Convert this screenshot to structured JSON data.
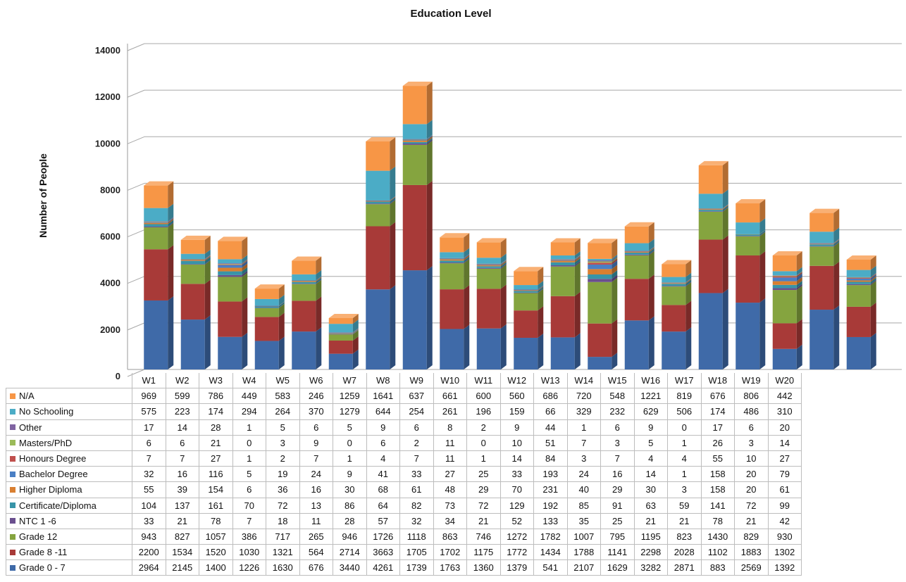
{
  "chart_data": {
    "type": "bar",
    "stacked": true,
    "title": "Education Level",
    "ylabel": "Number of People",
    "xlabel": "",
    "ylim": [
      0,
      14000
    ],
    "yticks": [
      0,
      2000,
      4000,
      6000,
      8000,
      10000,
      12000,
      14000
    ],
    "grid": true,
    "legend": "data table below chart",
    "categories": [
      "W1",
      "W2",
      "W3",
      "W4",
      "W5",
      "W6",
      "W7",
      "W8",
      "W9",
      "W10",
      "W11",
      "W12",
      "W13",
      "W14",
      "W15",
      "W16",
      "W17",
      "W18",
      "W19",
      "W20"
    ],
    "series": [
      {
        "name": "Grade 0 - 7",
        "color": "#3f6aa8",
        "values": [
          2964,
          2145,
          1400,
          1226,
          1630,
          676,
          3440,
          4261,
          1739,
          1763,
          1360,
          1379,
          541,
          2107,
          1629,
          3282,
          2871,
          883,
          2569,
          1392
        ]
      },
      {
        "name": "Grade 8 -11",
        "color": "#a83a38",
        "values": [
          2200,
          1534,
          1520,
          1030,
          1321,
          564,
          2714,
          3663,
          1705,
          1702,
          1175,
          1772,
          1434,
          1788,
          1141,
          2298,
          2028,
          1102,
          1883,
          1302
        ]
      },
      {
        "name": "Grade 12",
        "color": "#85a43f",
        "values": [
          943,
          827,
          1057,
          386,
          717,
          265,
          946,
          1726,
          1118,
          863,
          746,
          1272,
          1782,
          1007,
          795,
          1195,
          823,
          1430,
          829,
          930
        ]
      },
      {
        "name": "NTC 1 -6",
        "color": "#6a4f8e",
        "values": [
          33,
          21,
          78,
          7,
          18,
          11,
          28,
          57,
          32,
          34,
          21,
          52,
          133,
          35,
          25,
          21,
          21,
          78,
          21,
          42
        ]
      },
      {
        "name": "Certificate/Diploma",
        "color": "#3894a8",
        "values": [
          104,
          137,
          161,
          70,
          72,
          13,
          86,
          64,
          82,
          73,
          72,
          129,
          192,
          85,
          91,
          63,
          59,
          141,
          72,
          99
        ]
      },
      {
        "name": "Higher Diploma",
        "color": "#d97f30",
        "values": [
          55,
          39,
          154,
          6,
          36,
          16,
          30,
          68,
          61,
          48,
          29,
          70,
          231,
          40,
          29,
          30,
          3,
          158,
          20,
          61
        ]
      },
      {
        "name": "Bachelor Degree",
        "color": "#4a7fc4",
        "values": [
          32,
          16,
          116,
          5,
          19,
          24,
          9,
          41,
          33,
          27,
          25,
          33,
          193,
          24,
          16,
          14,
          1,
          158,
          20,
          79
        ]
      },
      {
        "name": "Honours Degree",
        "color": "#c0504d",
        "values": [
          7,
          7,
          27,
          1,
          2,
          7,
          1,
          4,
          7,
          11,
          1,
          14,
          84,
          3,
          7,
          4,
          4,
          55,
          10,
          27
        ]
      },
      {
        "name": "Masters/PhD",
        "color": "#9bbb59",
        "values": [
          6,
          6,
          21,
          0,
          3,
          9,
          0,
          6,
          2,
          11,
          0,
          10,
          51,
          7,
          3,
          5,
          1,
          26,
          3,
          14
        ]
      },
      {
        "name": "Other",
        "color": "#8064a2",
        "values": [
          17,
          14,
          28,
          1,
          5,
          6,
          5,
          9,
          6,
          8,
          2,
          9,
          44,
          1,
          6,
          9,
          0,
          17,
          6,
          20
        ]
      },
      {
        "name": "No Schooling",
        "color": "#4bacc6",
        "values": [
          575,
          223,
          174,
          294,
          264,
          370,
          1279,
          644,
          254,
          261,
          196,
          159,
          66,
          329,
          232,
          629,
          506,
          174,
          486,
          310
        ]
      },
      {
        "name": "N/A",
        "color": "#f79646",
        "values": [
          969,
          599,
          786,
          449,
          583,
          246,
          1259,
          1641,
          637,
          661,
          600,
          560,
          686,
          720,
          548,
          1221,
          819,
          676,
          806,
          442
        ]
      }
    ]
  }
}
